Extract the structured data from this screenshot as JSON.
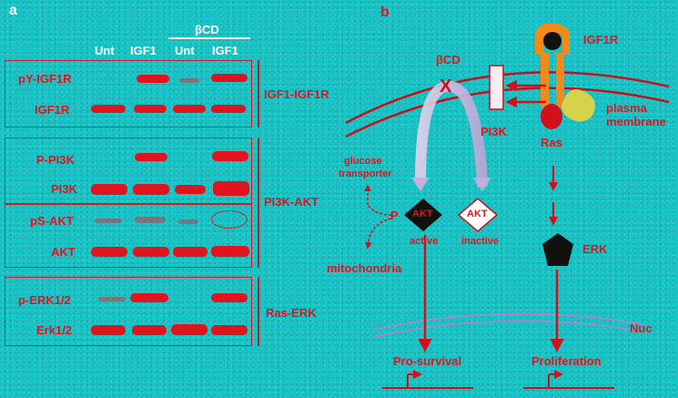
{
  "panel_a": {
    "letter": "a",
    "group_header": "βCD",
    "lanes": [
      "Unt",
      "IGF1",
      "Unt",
      "IGF1"
    ],
    "rows": [
      "pY-IGF1R",
      "IGF1R",
      "P-PI3K",
      "PI3K",
      "pS-AKT",
      "AKT",
      "p-ERK1/2",
      "Erk1/2"
    ],
    "groups": [
      "IGF1-IGF1R",
      "PI3K-AKT",
      "Ras-ERK"
    ]
  },
  "panel_b": {
    "letter": "b",
    "receptor": "IGF1R",
    "bcd": "βCD",
    "block_mark": "X",
    "membrane": "plasma membrane",
    "membrane_line1": "plasma",
    "membrane_line2": "membrane",
    "pi3k": "PI3K",
    "ras": "Ras",
    "glucose_line1": "glucose",
    "glucose_line2": "transporter",
    "phospho": "P",
    "akt": "AKT",
    "akt_active": "active",
    "akt_inactive": "inactive",
    "mitochondria": "mitochondria",
    "erk": "ERK",
    "nuc": "Nuc",
    "pro_survival": "Pro-survival",
    "proliferation": "Proliferation"
  }
}
